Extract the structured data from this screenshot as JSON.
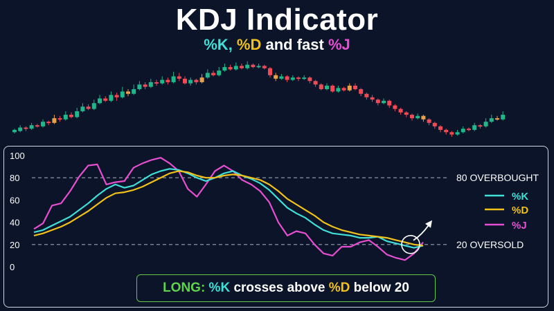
{
  "title": "KDJ Indicator",
  "subtitle": {
    "k": "%K",
    "sep1": ", ",
    "d": "%D",
    "mid": " and fast ",
    "j": "%J"
  },
  "colors": {
    "background": "#0b1428",
    "k": "#3fe0d8",
    "d": "#f2c21a",
    "j": "#e74fd2",
    "bull_candle": "#1fb88a",
    "bear_candle": "#ef4a56",
    "neutral_candle": "#e8a04a",
    "grid": "#9aa3b5",
    "long": "#5fd34b"
  },
  "note": {
    "long": "LONG:",
    "k": " %K",
    "text1": " crosses above ",
    "d": "%D",
    "text2": " below 20"
  },
  "chart_data": [
    {
      "type": "candlestick",
      "title": "",
      "candles": [
        {
          "o": 21,
          "c": 23,
          "h": 24,
          "l": 20
        },
        {
          "o": 22,
          "c": 25,
          "h": 27,
          "l": 21
        },
        {
          "o": 25,
          "c": 24,
          "h": 26,
          "l": 22
        },
        {
          "o": 24,
          "c": 27,
          "h": 29,
          "l": 23
        },
        {
          "o": 27,
          "c": 26,
          "h": 28,
          "l": 25
        },
        {
          "o": 26,
          "c": 30,
          "h": 32,
          "l": 25
        },
        {
          "o": 30,
          "c": 29,
          "h": 31,
          "l": 27
        },
        {
          "o": 29,
          "c": 33,
          "h": 36,
          "l": 28
        },
        {
          "o": 33,
          "c": 32,
          "h": 35,
          "l": 30
        },
        {
          "o": 32,
          "c": 36,
          "h": 39,
          "l": 31
        },
        {
          "o": 36,
          "c": 34,
          "h": 38,
          "l": 33
        },
        {
          "o": 34,
          "c": 39,
          "h": 42,
          "l": 33
        },
        {
          "o": 39,
          "c": 43,
          "h": 46,
          "l": 38
        },
        {
          "o": 43,
          "c": 41,
          "h": 45,
          "l": 40
        },
        {
          "o": 41,
          "c": 46,
          "h": 49,
          "l": 40
        },
        {
          "o": 46,
          "c": 50,
          "h": 53,
          "l": 45
        },
        {
          "o": 50,
          "c": 48,
          "h": 52,
          "l": 47
        },
        {
          "o": 48,
          "c": 53,
          "h": 56,
          "l": 47
        },
        {
          "o": 53,
          "c": 51,
          "h": 55,
          "l": 48
        },
        {
          "o": 51,
          "c": 56,
          "h": 60,
          "l": 50
        },
        {
          "o": 56,
          "c": 54,
          "h": 58,
          "l": 52
        },
        {
          "o": 54,
          "c": 58,
          "h": 62,
          "l": 53
        },
        {
          "o": 58,
          "c": 62,
          "h": 65,
          "l": 57
        },
        {
          "o": 62,
          "c": 60,
          "h": 64,
          "l": 58
        },
        {
          "o": 60,
          "c": 64,
          "h": 67,
          "l": 59
        },
        {
          "o": 64,
          "c": 63,
          "h": 66,
          "l": 61
        },
        {
          "o": 63,
          "c": 66,
          "h": 69,
          "l": 62
        },
        {
          "o": 66,
          "c": 64,
          "h": 68,
          "l": 62
        },
        {
          "o": 64,
          "c": 69,
          "h": 73,
          "l": 63
        },
        {
          "o": 69,
          "c": 67,
          "h": 72,
          "l": 65
        },
        {
          "o": 67,
          "c": 63,
          "h": 69,
          "l": 62
        },
        {
          "o": 63,
          "c": 66,
          "h": 68,
          "l": 61
        },
        {
          "o": 66,
          "c": 64,
          "h": 67,
          "l": 62
        },
        {
          "o": 64,
          "c": 68,
          "h": 71,
          "l": 63
        },
        {
          "o": 68,
          "c": 72,
          "h": 75,
          "l": 67
        },
        {
          "o": 72,
          "c": 70,
          "h": 74,
          "l": 69
        },
        {
          "o": 70,
          "c": 74,
          "h": 77,
          "l": 69
        },
        {
          "o": 74,
          "c": 77,
          "h": 80,
          "l": 73
        },
        {
          "o": 77,
          "c": 75,
          "h": 79,
          "l": 74
        },
        {
          "o": 75,
          "c": 78,
          "h": 81,
          "l": 74
        },
        {
          "o": 78,
          "c": 76,
          "h": 80,
          "l": 75
        },
        {
          "o": 76,
          "c": 79,
          "h": 82,
          "l": 75
        },
        {
          "o": 79,
          "c": 77,
          "h": 80,
          "l": 76
        },
        {
          "o": 77,
          "c": 78,
          "h": 80,
          "l": 76
        },
        {
          "o": 78,
          "c": 76,
          "h": 79,
          "l": 75
        },
        {
          "o": 76,
          "c": 70,
          "h": 77,
          "l": 68
        },
        {
          "o": 70,
          "c": 67,
          "h": 72,
          "l": 65
        },
        {
          "o": 67,
          "c": 69,
          "h": 71,
          "l": 66
        },
        {
          "o": 69,
          "c": 66,
          "h": 70,
          "l": 64
        },
        {
          "o": 66,
          "c": 68,
          "h": 70,
          "l": 65
        },
        {
          "o": 68,
          "c": 67,
          "h": 69,
          "l": 65
        },
        {
          "o": 67,
          "c": 68,
          "h": 70,
          "l": 66
        },
        {
          "o": 68,
          "c": 65,
          "h": 69,
          "l": 63
        },
        {
          "o": 65,
          "c": 62,
          "h": 66,
          "l": 60
        },
        {
          "o": 62,
          "c": 58,
          "h": 63,
          "l": 57
        },
        {
          "o": 58,
          "c": 61,
          "h": 63,
          "l": 57
        },
        {
          "o": 61,
          "c": 56,
          "h": 62,
          "l": 55
        },
        {
          "o": 56,
          "c": 59,
          "h": 61,
          "l": 55
        },
        {
          "o": 59,
          "c": 57,
          "h": 60,
          "l": 56
        },
        {
          "o": 57,
          "c": 61,
          "h": 63,
          "l": 56
        },
        {
          "o": 61,
          "c": 58,
          "h": 63,
          "l": 57
        },
        {
          "o": 58,
          "c": 54,
          "h": 59,
          "l": 52
        },
        {
          "o": 54,
          "c": 51,
          "h": 55,
          "l": 49
        },
        {
          "o": 51,
          "c": 49,
          "h": 53,
          "l": 47
        },
        {
          "o": 49,
          "c": 46,
          "h": 50,
          "l": 44
        },
        {
          "o": 46,
          "c": 48,
          "h": 50,
          "l": 45
        },
        {
          "o": 48,
          "c": 44,
          "h": 49,
          "l": 42
        },
        {
          "o": 44,
          "c": 41,
          "h": 45,
          "l": 39
        },
        {
          "o": 41,
          "c": 38,
          "h": 42,
          "l": 36
        },
        {
          "o": 38,
          "c": 36,
          "h": 39,
          "l": 34
        },
        {
          "o": 36,
          "c": 33,
          "h": 37,
          "l": 31
        },
        {
          "o": 33,
          "c": 35,
          "h": 37,
          "l": 32
        },
        {
          "o": 35,
          "c": 32,
          "h": 36,
          "l": 30
        },
        {
          "o": 32,
          "c": 29,
          "h": 33,
          "l": 27
        },
        {
          "o": 29,
          "c": 26,
          "h": 30,
          "l": 24
        },
        {
          "o": 26,
          "c": 23,
          "h": 27,
          "l": 21
        },
        {
          "o": 23,
          "c": 21,
          "h": 24,
          "l": 19
        },
        {
          "o": 21,
          "c": 19,
          "h": 22,
          "l": 17
        },
        {
          "o": 19,
          "c": 21,
          "h": 23,
          "l": 18
        },
        {
          "o": 21,
          "c": 24,
          "h": 26,
          "l": 20
        },
        {
          "o": 24,
          "c": 23,
          "h": 25,
          "l": 22
        },
        {
          "o": 23,
          "c": 27,
          "h": 29,
          "l": 22
        },
        {
          "o": 27,
          "c": 26,
          "h": 28,
          "l": 24
        },
        {
          "o": 26,
          "c": 30,
          "h": 33,
          "l": 25
        },
        {
          "o": 30,
          "c": 33,
          "h": 36,
          "l": 29
        },
        {
          "o": 33,
          "c": 32,
          "h": 35,
          "l": 31
        },
        {
          "o": 32,
          "c": 36,
          "h": 39,
          "l": 31
        }
      ]
    },
    {
      "type": "line",
      "title": "",
      "ylim": [
        0,
        100
      ],
      "yticks": [
        0,
        20,
        40,
        60,
        80,
        100
      ],
      "hlines": [
        {
          "value": 80,
          "label": "80  OVERBOUGHT"
        },
        {
          "value": 20,
          "label": "20  OVERSOLD"
        }
      ],
      "xlim": [
        0,
        36
      ],
      "series": [
        {
          "name": "%K",
          "values": [
            31,
            33,
            37,
            41,
            45,
            51,
            57,
            64,
            70,
            74,
            71,
            73,
            78,
            83,
            86,
            88,
            87,
            84,
            80,
            77,
            80,
            84,
            86,
            82,
            79,
            75,
            69,
            61,
            53,
            48,
            44,
            38,
            33,
            30,
            29,
            28,
            26,
            26,
            27,
            23,
            21,
            19,
            17,
            19
          ]
        },
        {
          "name": "%D",
          "values": [
            28,
            30,
            33,
            36,
            40,
            45,
            50,
            56,
            62,
            66,
            67,
            69,
            72,
            76,
            80,
            84,
            86,
            85,
            82,
            80,
            80,
            82,
            83,
            82,
            80,
            78,
            74,
            68,
            61,
            56,
            51,
            46,
            40,
            36,
            33,
            31,
            29,
            28,
            27,
            26,
            24,
            22,
            20,
            19
          ]
        },
        {
          "name": "%J",
          "values": [
            34,
            39,
            55,
            57,
            68,
            81,
            91,
            92,
            74,
            76,
            77,
            89,
            93,
            96,
            98,
            93,
            86,
            70,
            63,
            74,
            86,
            91,
            86,
            78,
            74,
            68,
            58,
            40,
            28,
            32,
            30,
            20,
            12,
            10,
            18,
            18,
            22,
            24,
            18,
            11,
            8,
            6,
            12,
            22
          ]
        }
      ],
      "annotation": "cross marked with circle and up arrow"
    }
  ],
  "legend": [
    {
      "label": "%K",
      "color": "#3fe0d8"
    },
    {
      "label": "%D",
      "color": "#f2c21a"
    },
    {
      "label": "%J",
      "color": "#e74fd2"
    }
  ]
}
